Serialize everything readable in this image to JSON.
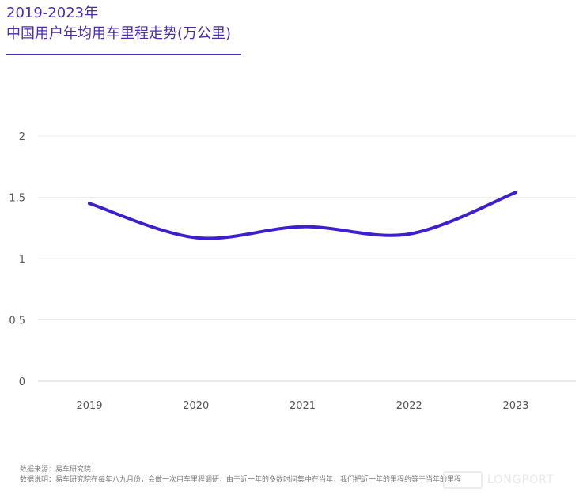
{
  "header": {
    "title_line1": "2019-2023年",
    "title_line2": "中国用户年均用车里程走势(万公里)"
  },
  "chart_data": {
    "type": "line",
    "categories": [
      "2019",
      "2020",
      "2021",
      "2022",
      "2023"
    ],
    "series": [
      {
        "values": [
          1.45,
          1.17,
          1.26,
          1.2,
          1.54
        ]
      }
    ],
    "ylim": [
      0,
      2
    ],
    "yticks": [
      {
        "value": 0,
        "label": "0"
      },
      {
        "value": 0.5,
        "label": "0.5"
      },
      {
        "value": 1,
        "label": "1"
      },
      {
        "value": 1.5,
        "label": "1.5"
      },
      {
        "value": 2,
        "label": "2"
      }
    ],
    "grid": true,
    "line_color": "#3d1fd0"
  },
  "footer": {
    "source": "数据来源：易车研究院",
    "note": "数据说明：易车研究院在每年八九月份，会做一次用车里程调研，由于近一年的多数时间集中在当年，我们把近一年的里程约等于当年的里程"
  },
  "watermark": {
    "text": "LONGPORT"
  }
}
